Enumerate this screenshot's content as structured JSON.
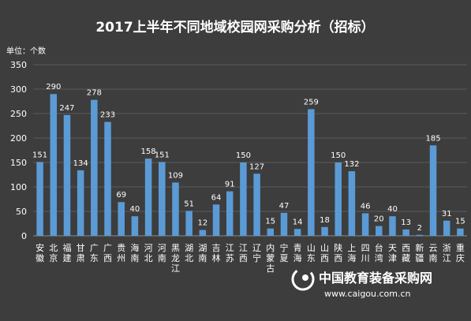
{
  "chart_data": {
    "type": "bar",
    "title": "2017上半年不同地域校园网采购分析（招标）",
    "unit_label": "单位：个数",
    "ylim": [
      0,
      350
    ],
    "yticks": [
      0,
      50,
      100,
      150,
      200,
      250,
      300,
      350
    ],
    "grid": true,
    "bar_color": "#5b9bd5",
    "categories": [
      "安徽",
      "北京",
      "福建",
      "甘肃",
      "广东",
      "广西",
      "贵州",
      "海南",
      "河北",
      "河南",
      "黑龙江",
      "湖北",
      "湖南",
      "吉林",
      "江苏",
      "江西",
      "辽宁",
      "内蒙古",
      "宁夏",
      "青海",
      "山东",
      "山西",
      "陕西",
      "上海",
      "四川",
      "台湾",
      "天津",
      "西藏",
      "新疆",
      "云南",
      "浙江",
      "重庆"
    ],
    "values": [
      151,
      290,
      247,
      134,
      278,
      233,
      69,
      40,
      158,
      151,
      109,
      51,
      12,
      64,
      91,
      150,
      127,
      15,
      47,
      14,
      259,
      18,
      150,
      132,
      46,
      20,
      40,
      13,
      2,
      185,
      31,
      15
    ]
  },
  "watermark": {
    "name": "中国教育装备采购网",
    "url": "www.caigou.com.cn"
  }
}
